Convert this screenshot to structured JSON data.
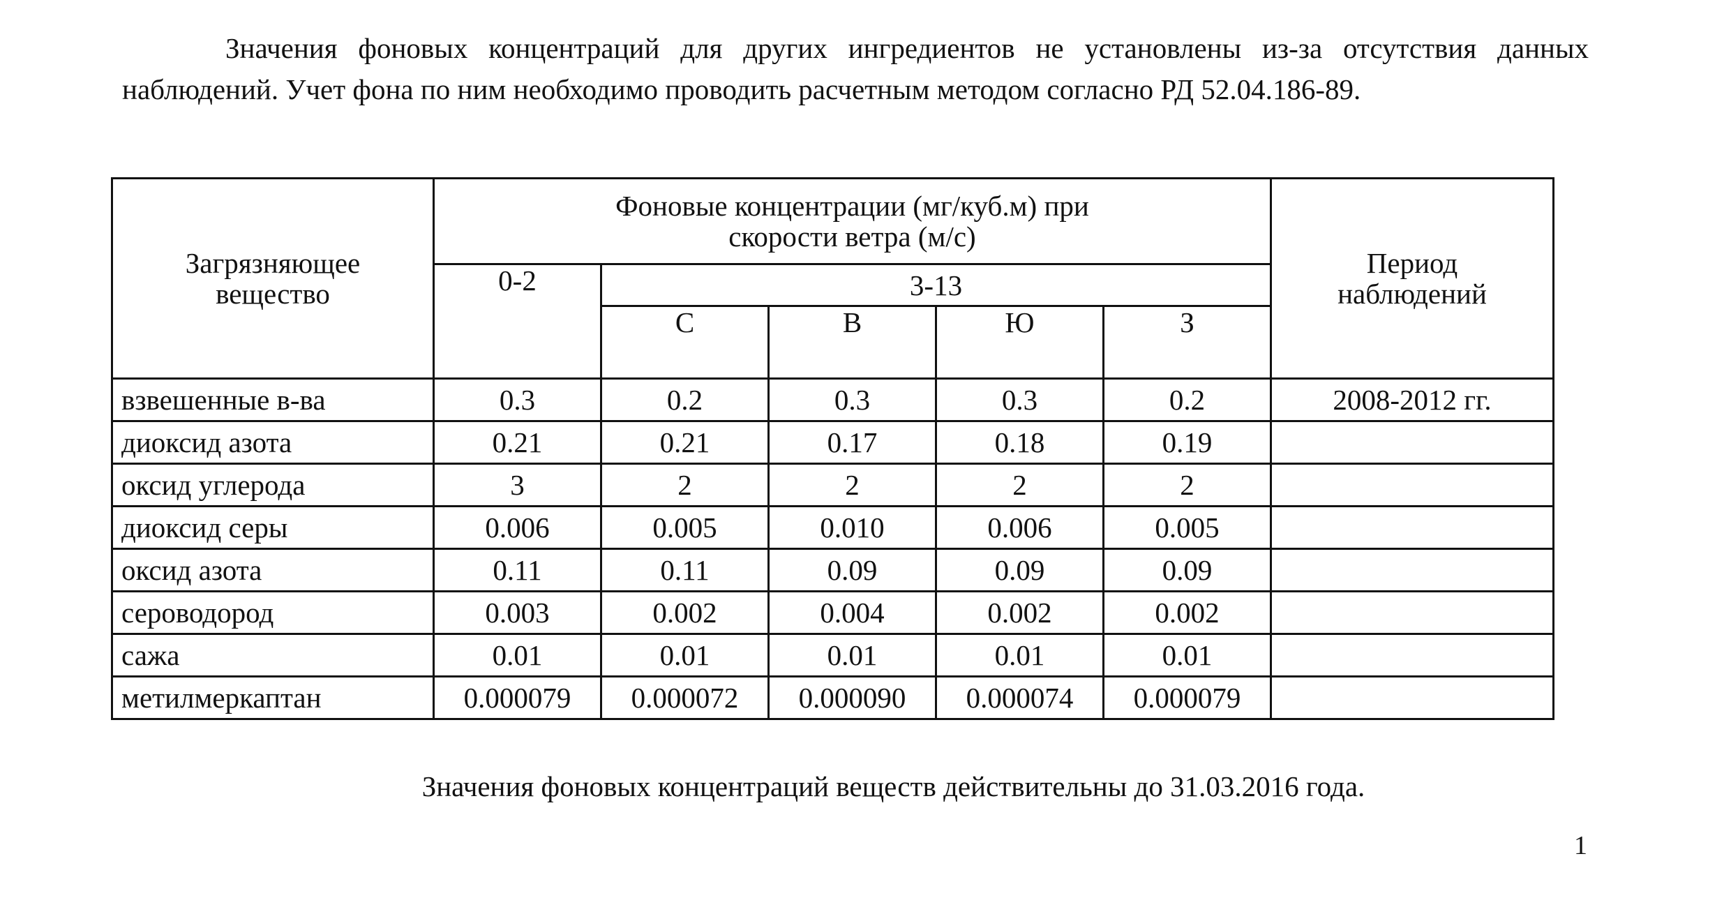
{
  "intro_paragraph": "Значения фоновых концентраций для других ингредиентов не установлены из-за отсутствия данных наблюдений. Учет фона по ним необходимо проводить расчетным методом согласно РД 52.04.186-89.",
  "table": {
    "header": {
      "pollutant": "Загрязняющее вещество",
      "concentrations": "Фоновые концентрации (мг/куб.м) при скорости ветра (м/с)",
      "speed_low": "0-2",
      "speed_high": "3-13",
      "directions": [
        "С",
        "В",
        "Ю",
        "З"
      ],
      "period": "Период наблюдений"
    },
    "rows": [
      {
        "name": "взвешенные в-ва",
        "values": [
          "0.3",
          "0.2",
          "0.3",
          "0.3",
          "0.2"
        ],
        "period": "2008-2012 гг."
      },
      {
        "name": "диоксид азота",
        "values": [
          "0.21",
          "0.21",
          "0.17",
          "0.18",
          "0.19"
        ],
        "period": ""
      },
      {
        "name": "оксид углерода",
        "values": [
          "3",
          "2",
          "2",
          "2",
          "2"
        ],
        "period": ""
      },
      {
        "name": "диоксид серы",
        "values": [
          "0.006",
          "0.005",
          "0.010",
          "0.006",
          "0.005"
        ],
        "period": ""
      },
      {
        "name": "оксид азота",
        "values": [
          "0.11",
          "0.11",
          "0.09",
          "0.09",
          "0.09"
        ],
        "period": ""
      },
      {
        "name": "сероводород",
        "values": [
          "0.003",
          "0.002",
          "0.004",
          "0.002",
          "0.002"
        ],
        "period": ""
      },
      {
        "name": "сажа",
        "values": [
          "0.01",
          "0.01",
          "0.01",
          "0.01",
          "0.01"
        ],
        "period": ""
      },
      {
        "name": "метилмеркаптан",
        "values": [
          "0.000079",
          "0.000072",
          "0.000090",
          "0.000074",
          "0.000079"
        ],
        "period": ""
      }
    ]
  },
  "footer_note": "Значения фоновых концентраций веществ действительны до 31.03.2016 года.",
  "page_number": "1"
}
